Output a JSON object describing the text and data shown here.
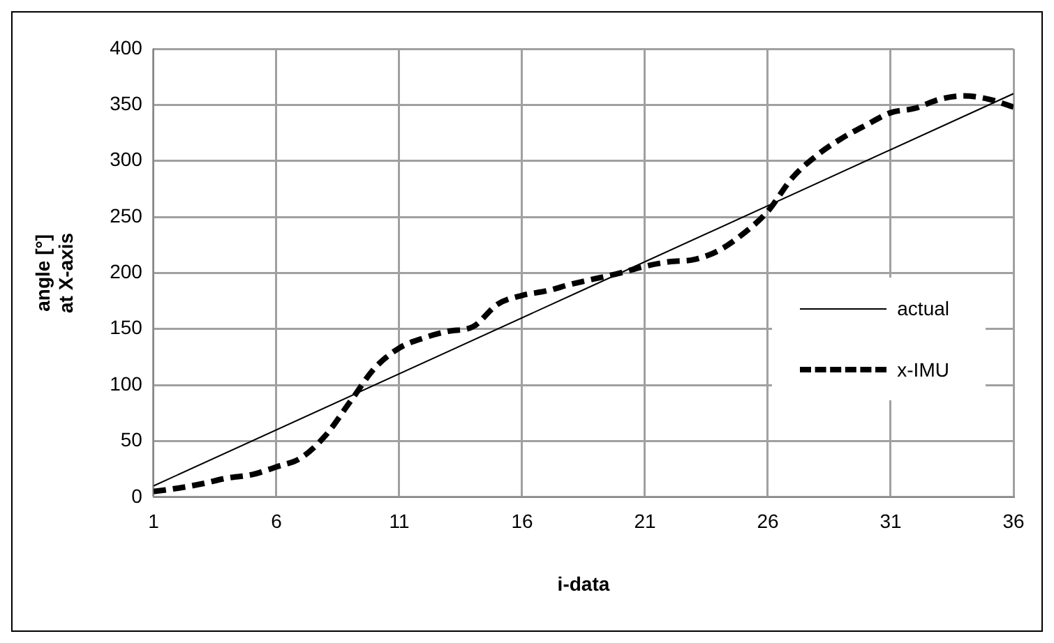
{
  "chart_data": {
    "type": "line",
    "xlabel": "i-data",
    "ylabel": "angle [°]\nat X-axis",
    "x": [
      1,
      2,
      3,
      4,
      5,
      6,
      7,
      8,
      9,
      10,
      11,
      12,
      13,
      14,
      15,
      16,
      17,
      18,
      19,
      20,
      21,
      22,
      23,
      24,
      25,
      26,
      27,
      28,
      29,
      30,
      31,
      32,
      33,
      34,
      35,
      36
    ],
    "series": [
      {
        "name": "actual",
        "color": "#000000",
        "line_style": "solid",
        "x": [
          1,
          36
        ],
        "values": [
          10,
          360
        ]
      },
      {
        "name": "x-IMU",
        "color": "#000000",
        "line_style": "dashed",
        "values": [
          5,
          8,
          12,
          17,
          20,
          27,
          35,
          55,
          85,
          115,
          133,
          142,
          148,
          152,
          172,
          180,
          184,
          190,
          195,
          200,
          206,
          210,
          212,
          220,
          235,
          255,
          285,
          305,
          320,
          332,
          343,
          347,
          355,
          358,
          355,
          348
        ]
      }
    ],
    "xlim": [
      1,
      36
    ],
    "xticks": [
      1,
      6,
      11,
      16,
      21,
      26,
      31,
      36
    ],
    "ylim": [
      0,
      400
    ],
    "yticks": [
      0,
      50,
      100,
      150,
      200,
      250,
      300,
      350,
      400
    ],
    "grid": true,
    "legend": "right",
    "marker": "none"
  }
}
